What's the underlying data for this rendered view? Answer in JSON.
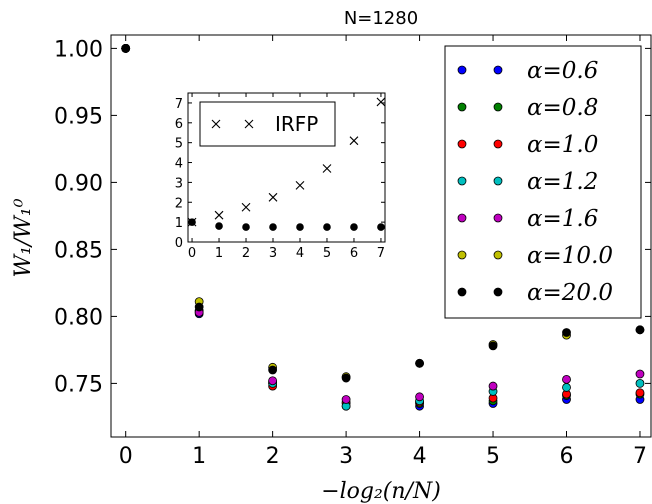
{
  "chart_data": {
    "type": "scatter",
    "title": "N=1280",
    "xlabel": "−log₂(n/N)",
    "ylabel": "W₁/W₁⁰",
    "xlim": [
      -0.2,
      7.15
    ],
    "ylim": [
      0.71,
      1.01
    ],
    "xticks": [
      0,
      1,
      2,
      3,
      4,
      5,
      6,
      7
    ],
    "yticks": [
      0.75,
      0.8,
      0.85,
      0.9,
      0.95,
      1.0
    ],
    "ytick_labels": [
      "0.75",
      "0.80",
      "0.85",
      "0.90",
      "0.95",
      "1.00"
    ],
    "x": [
      0,
      1,
      2,
      3,
      4,
      5,
      6,
      7
    ],
    "legend_position": "right",
    "series": [
      {
        "name": "α=0.6",
        "color": "#0000ff",
        "values": [
          1.0,
          0.802,
          0.751,
          0.733,
          0.733,
          0.735,
          0.738,
          0.738
        ]
      },
      {
        "name": "α=0.8",
        "color": "#008000",
        "values": [
          1.0,
          0.803,
          0.75,
          0.735,
          0.735,
          0.737,
          0.741,
          0.742
        ]
      },
      {
        "name": "α=1.0",
        "color": "#ff0000",
        "values": [
          1.0,
          0.804,
          0.748,
          0.736,
          0.736,
          0.739,
          0.742,
          0.743
        ]
      },
      {
        "name": "α=1.2",
        "color": "#00bfbf",
        "values": [
          1.0,
          0.804,
          0.75,
          0.733,
          0.737,
          0.744,
          0.747,
          0.75
        ]
      },
      {
        "name": "α=1.6",
        "color": "#bf00bf",
        "values": [
          1.0,
          0.803,
          0.752,
          0.738,
          0.74,
          0.748,
          0.753,
          0.757
        ]
      },
      {
        "name": "α=10.0",
        "color": "#bfbf00",
        "values": [
          1.0,
          0.811,
          0.762,
          0.755,
          0.765,
          0.779,
          0.786,
          0.79
        ]
      },
      {
        "name": "α=20.0",
        "color": "#000000",
        "values": [
          1.0,
          0.807,
          0.76,
          0.754,
          0.765,
          0.778,
          0.788,
          0.79
        ]
      }
    ],
    "inset": {
      "type": "scatter",
      "xlim": [
        -0.15,
        7.15
      ],
      "ylim": [
        0,
        7.5
      ],
      "xticks": [
        0,
        1,
        2,
        3,
        4,
        5,
        6,
        7
      ],
      "yticks": [
        0,
        1,
        2,
        3,
        4,
        5,
        6,
        7
      ],
      "x": [
        0,
        1,
        2,
        3,
        4,
        5,
        6,
        7
      ],
      "series": [
        {
          "name": "IRFP",
          "marker": "x",
          "color": "#000000",
          "values": [
            1.0,
            1.35,
            1.75,
            2.25,
            2.85,
            3.7,
            5.1,
            7.05
          ]
        },
        {
          "name": "",
          "marker": "dot",
          "color": "#000000",
          "values": [
            1.0,
            0.8,
            0.75,
            0.75,
            0.75,
            0.75,
            0.75,
            0.75
          ]
        }
      ],
      "legend": [
        "IRFP"
      ],
      "legend_position": "top-left"
    }
  }
}
